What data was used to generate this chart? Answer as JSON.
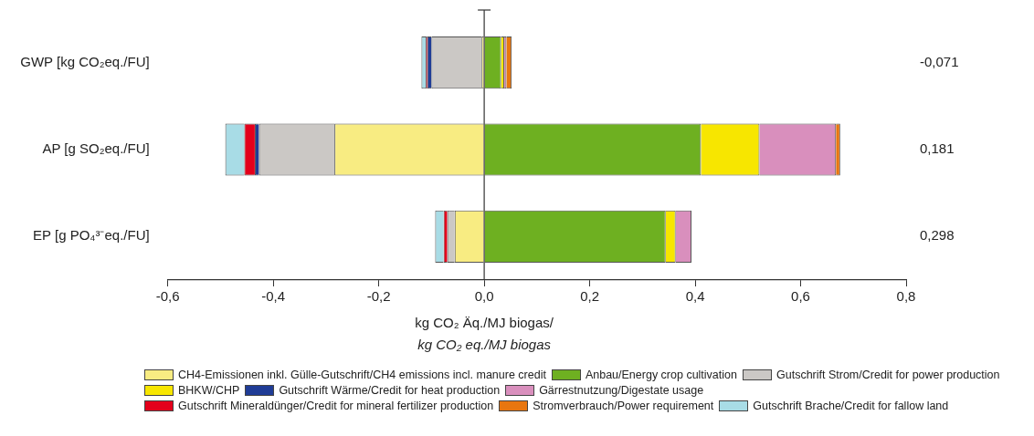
{
  "chart_data": {
    "type": "bar",
    "orientation": "horizontal",
    "stacked": true,
    "categories": [
      "GWP [kg CO₂eq./FU]",
      "AP [g SO₂eq./FU]",
      "EP [g PO₄³⁻eq./FU]"
    ],
    "series": [
      {
        "name": "CH4-Emissionen inkl. Gülle-Gutschrift/CH4 emissions incl. manure credit",
        "color": "#f8ec82",
        "values": [
          -0.005,
          -0.284,
          -0.056
        ]
      },
      {
        "name": "Anbau/Energy crop cultivation",
        "color": "#6eb021",
        "values": [
          0.032,
          0.411,
          0.344
        ]
      },
      {
        "name": "Gutschrift Strom/Credit for power production",
        "color": "#cbc8c5",
        "values": [
          -0.095,
          -0.143,
          -0.014
        ]
      },
      {
        "name": "BHKW/CHP",
        "color": "#f7e600",
        "values": [
          0.006,
          0.111,
          0.019
        ]
      },
      {
        "name": "Gutschrift Wärme/Credit for heat production",
        "color": "#1f3c96",
        "values": [
          -0.008,
          -0.008,
          null
        ]
      },
      {
        "name": "Gärrestnutzung/Digestate usage",
        "color": "#d98fbd",
        "values": [
          0.004,
          0.145,
          0.03
        ]
      },
      {
        "name": "Gutschrift Mineraldünger/Credit for mineral fertilizer production",
        "color": "#e3001b",
        "values": [
          -0.003,
          -0.02,
          -0.007
        ]
      },
      {
        "name": "Stromverbrauch/Power requirement",
        "color": "#e8760f",
        "values": [
          0.01,
          0.008,
          null
        ]
      },
      {
        "name": "Gutschrift Brache/Credit for fallow land",
        "color": "#a8dce6",
        "values": [
          -0.008,
          -0.036,
          -0.016
        ]
      }
    ],
    "xlim": [
      -0.6,
      0.8
    ],
    "xticks": [
      {
        "value": -0.6,
        "label": "-0,6"
      },
      {
        "value": -0.4,
        "label": "-0,4"
      },
      {
        "value": -0.2,
        "label": "-0,2"
      },
      {
        "value": 0,
        "label": "0,0"
      },
      {
        "value": 0.2,
        "label": "0,2"
      },
      {
        "value": 0.4,
        "label": "0,4"
      },
      {
        "value": 0.6,
        "label": "0,6"
      },
      {
        "value": 0.8,
        "label": "0,8"
      }
    ],
    "xlabel": "kg CO₂ Äq./MJ biogas/\nkg CO₂ eq./MJ biogas",
    "annotations": [
      "-0,071",
      "0,181",
      "0,298"
    ],
    "legend": "bottom"
  }
}
